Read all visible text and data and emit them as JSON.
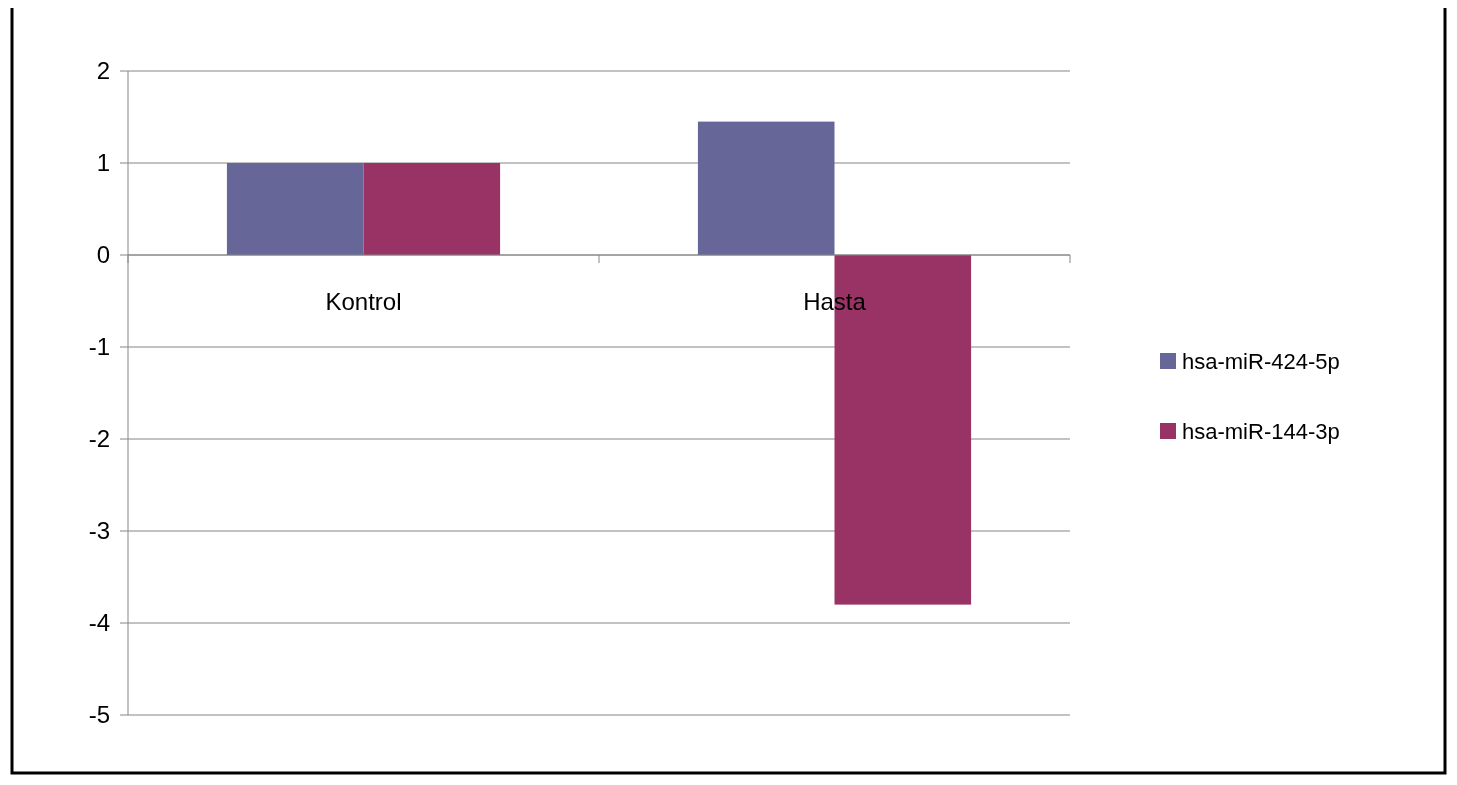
{
  "chart_data": {
    "type": "bar",
    "categories": [
      "Kontrol",
      "Hasta"
    ],
    "series": [
      {
        "name": "hsa-miR-424-5p",
        "color": "#666699",
        "values": [
          1,
          1.45
        ]
      },
      {
        "name": "hsa-miR-144-3p",
        "color": "#993366",
        "values": [
          1,
          -3.8
        ]
      }
    ],
    "ylim": [
      -5,
      2
    ],
    "yticks": [
      -5,
      -4,
      -3,
      -2,
      -1,
      0,
      1,
      2
    ],
    "grid": "y",
    "legend": "right"
  }
}
